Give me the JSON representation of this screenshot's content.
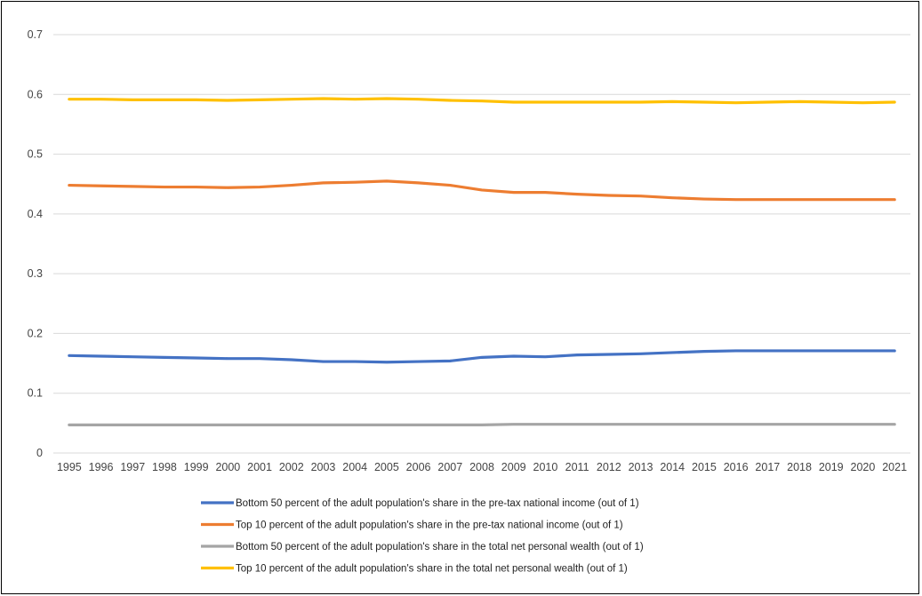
{
  "chart_data": {
    "type": "line",
    "x": [
      "1995",
      "1996",
      "1997",
      "1998",
      "1999",
      "2000",
      "2001",
      "2002",
      "2003",
      "2004",
      "2005",
      "2006",
      "2007",
      "2008",
      "2009",
      "2010",
      "2011",
      "2012",
      "2013",
      "2014",
      "2015",
      "2016",
      "2017",
      "2018",
      "2019",
      "2020",
      "2021"
    ],
    "ylim": [
      0,
      0.7
    ],
    "yticks": [
      "0",
      "0.1",
      "0.2",
      "0.3",
      "0.4",
      "0.5",
      "0.6",
      "0.7"
    ],
    "grid": true,
    "legend_position": "bottom",
    "series": [
      {
        "name": "Bottom 50 percent of the adult population's share in the pre-tax national income (out of 1)",
        "color": "#4472C4",
        "values": [
          0.163,
          0.162,
          0.161,
          0.16,
          0.159,
          0.158,
          0.158,
          0.156,
          0.153,
          0.153,
          0.152,
          0.153,
          0.154,
          0.16,
          0.162,
          0.161,
          0.164,
          0.165,
          0.166,
          0.168,
          0.17,
          0.171,
          0.171,
          0.171,
          0.171,
          0.171,
          0.171
        ]
      },
      {
        "name": "Top 10 percent of the adult population's share in the pre-tax national income (out of 1)",
        "color": "#ED7D31",
        "values": [
          0.448,
          0.447,
          0.446,
          0.445,
          0.445,
          0.444,
          0.445,
          0.448,
          0.452,
          0.453,
          0.455,
          0.452,
          0.448,
          0.44,
          0.436,
          0.436,
          0.433,
          0.431,
          0.43,
          0.427,
          0.425,
          0.424,
          0.424,
          0.424,
          0.424,
          0.424,
          0.424
        ]
      },
      {
        "name": "Bottom 50 percent of the adult population's share in the total net personal wealth (out of 1)",
        "color": "#A5A5A5",
        "values": [
          0.047,
          0.047,
          0.047,
          0.047,
          0.047,
          0.047,
          0.047,
          0.047,
          0.047,
          0.047,
          0.047,
          0.047,
          0.047,
          0.047,
          0.048,
          0.048,
          0.048,
          0.048,
          0.048,
          0.048,
          0.048,
          0.048,
          0.048,
          0.048,
          0.048,
          0.048,
          0.048
        ]
      },
      {
        "name": "Top 10 percent of the adult population's share in the total net personal wealth (out of 1)",
        "color": "#FFC000",
        "values": [
          0.592,
          0.592,
          0.591,
          0.591,
          0.591,
          0.59,
          0.591,
          0.592,
          0.593,
          0.592,
          0.593,
          0.592,
          0.59,
          0.589,
          0.587,
          0.587,
          0.587,
          0.587,
          0.587,
          0.588,
          0.587,
          0.586,
          0.587,
          0.588,
          0.587,
          0.586,
          0.587
        ]
      }
    ]
  }
}
